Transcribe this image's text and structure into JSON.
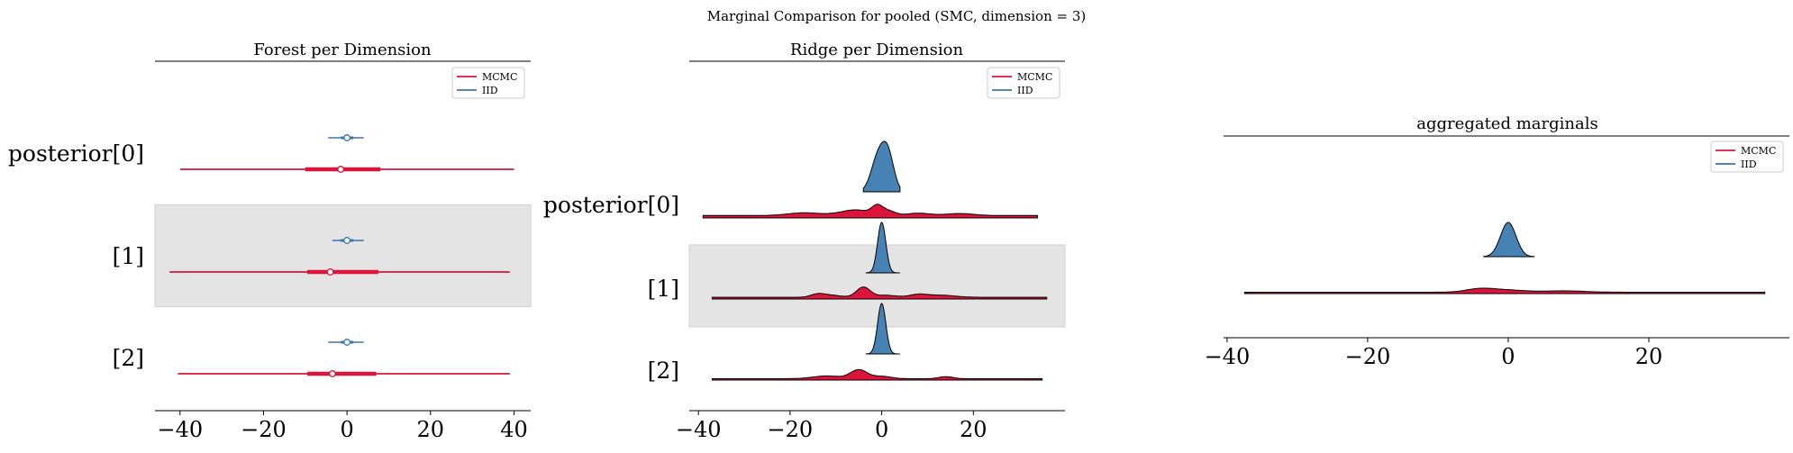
{
  "suptitle": "Marginal Comparison for pooled (SMC, dimension = 3)",
  "colors": {
    "mcmc": "#dc143c",
    "iid": "#3a75b0",
    "iid_fill": "#4682b4",
    "band": "#e4e4e4"
  },
  "chart_data": [
    {
      "type": "forest",
      "title": "Forest per Dimension",
      "xlim": [
        -46,
        44
      ],
      "xticks": [
        -40,
        -20,
        0,
        20,
        40
      ],
      "xtick_labels": [
        "−40",
        "−20",
        "0",
        "20",
        "40"
      ],
      "ylabels": [
        "posterior[0]",
        "[1]",
        "[2]"
      ],
      "legend": [
        "MCMC",
        "IID"
      ],
      "legend_loc": "upper right",
      "shaded_rows": [
        1
      ],
      "rows": [
        {
          "iid": {
            "hdi": [
              -4.5,
              4
            ],
            "iqr": [
              -1.5,
              1.5
            ],
            "median": 0
          },
          "mcmc": {
            "hdi": [
              -40,
              40
            ],
            "iqr": [
              -10,
              8
            ],
            "median": -1.5
          }
        },
        {
          "iid": {
            "hdi": [
              -3.5,
              4
            ],
            "iqr": [
              -1.5,
              1.5
            ],
            "median": 0
          },
          "mcmc": {
            "hdi": [
              -42.5,
              39
            ],
            "iqr": [
              -9.5,
              7.5
            ],
            "median": -4
          }
        },
        {
          "iid": {
            "hdi": [
              -4.5,
              4
            ],
            "iqr": [
              -1.5,
              1.5
            ],
            "median": 0
          },
          "mcmc": {
            "hdi": [
              -40.5,
              39
            ],
            "iqr": [
              -9.5,
              7
            ],
            "median": -3.5
          }
        }
      ]
    },
    {
      "type": "ridgeline",
      "title": "Ridge per Dimension",
      "xlim": [
        -42,
        40
      ],
      "xticks": [
        -40,
        -20,
        0,
        20
      ],
      "xtick_labels": [
        "−40",
        "−20",
        "0",
        "20"
      ],
      "ylabels": [
        "posterior[0]",
        "[1]",
        "[2]"
      ],
      "legend": [
        "MCMC",
        "IID"
      ],
      "legend_loc": "upper right",
      "shaded_rows": [
        1
      ],
      "rows": [
        {
          "iid": {
            "range": [
              -4,
              4
            ],
            "peaks": [
              [
                -0.8,
                1.0,
                1.5
              ],
              [
                1.4,
                1.0,
                1.3
              ]
            ]
          },
          "mcmc": {
            "range": [
              -39,
              34
            ],
            "baseline": 0.07,
            "peaks": [
              [
                -17,
                0.08,
                3.5
              ],
              [
                -8,
                0.07,
                3
              ],
              [
                -5,
                0.12,
                2.5
              ],
              [
                -1,
                0.26,
                1.2
              ],
              [
                1.5,
                0.13,
                1.5
              ],
              [
                8,
                0.07,
                2.5
              ],
              [
                17,
                0.06,
                3
              ]
            ]
          }
        },
        {
          "iid": {
            "range": [
              -3.5,
              4
            ],
            "peaks": [
              [
                0,
                1.0,
                0.9
              ]
            ]
          },
          "mcmc": {
            "range": [
              -37,
              36
            ],
            "baseline": 0.05,
            "peaks": [
              [
                -14,
                0.09,
                1.5
              ],
              [
                -11,
                0.06,
                2
              ],
              [
                -4,
                0.3,
                1.5
              ],
              [
                1,
                0.06,
                2
              ],
              [
                8,
                0.08,
                2
              ],
              [
                13,
                0.06,
                3
              ]
            ]
          }
        },
        {
          "iid": {
            "range": [
              -3.5,
              4
            ],
            "peaks": [
              [
                0,
                1.0,
                0.9
              ]
            ]
          },
          "mcmc": {
            "range": [
              -37,
              35
            ],
            "baseline": 0.04,
            "peaks": [
              [
                -12,
                0.08,
                3
              ],
              [
                -5,
                0.26,
                1.8
              ],
              [
                0,
                0.07,
                2
              ],
              [
                14,
                0.06,
                1.5
              ]
            ]
          }
        }
      ]
    },
    {
      "type": "area",
      "title": "aggregated marginals",
      "xlim": [
        -40.5,
        40
      ],
      "xticks": [
        -40,
        -20,
        0,
        20
      ],
      "xtick_labels": [
        "−40",
        "−20",
        "0",
        "20"
      ],
      "legend": [
        "MCMC",
        "IID"
      ],
      "legend_loc": "upper right",
      "iid": {
        "range": [
          -3.5,
          3.7
        ],
        "peaks": [
          [
            0,
            1.0,
            1.1
          ]
        ]
      },
      "mcmc": {
        "range": [
          -37.5,
          36.5
        ],
        "baseline": 0.04,
        "peaks": [
          [
            -4,
            0.1,
            2
          ],
          [
            0,
            0.06,
            2.5
          ],
          [
            8,
            0.04,
            3
          ]
        ]
      }
    }
  ]
}
